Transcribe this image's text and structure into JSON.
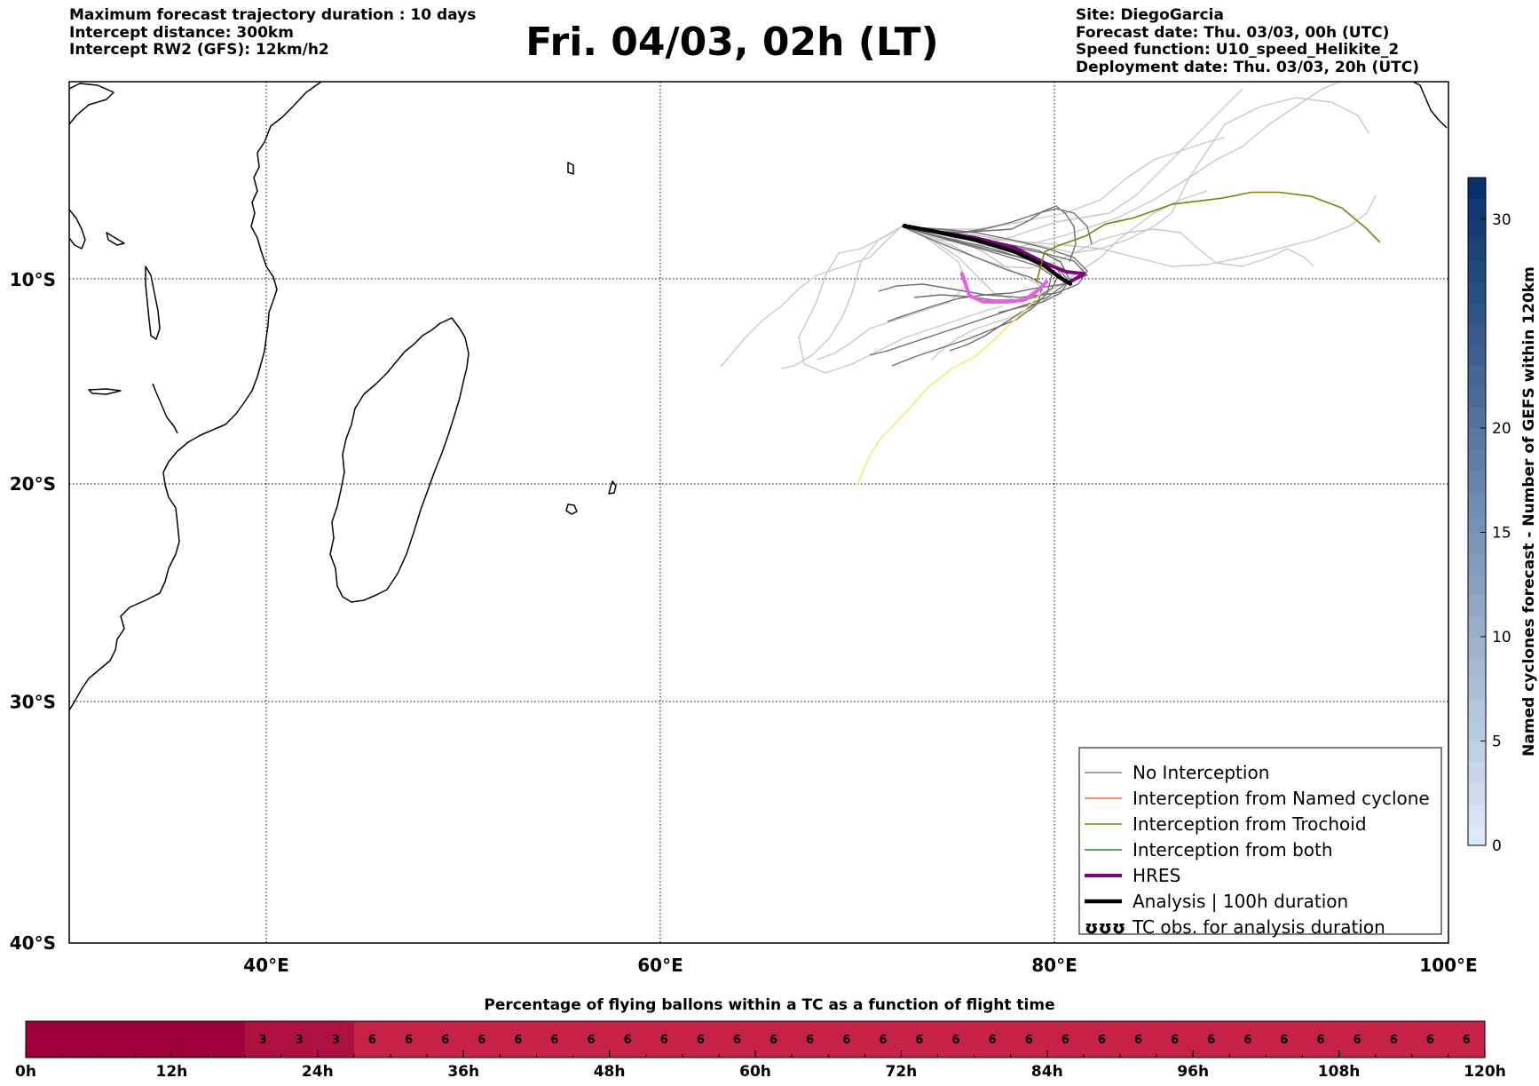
{
  "header": {
    "left_lines": [
      "Maximum forecast trajectory duration : 10 days",
      "Intercept distance: 300km",
      "Intercept RW2 (GFS):  12km/h2"
    ],
    "title": "Fri. 04/03, 02h (LT)",
    "right_lines": [
      "Site: DiegoGarcia",
      "Forecast date: Thu. 03/03, 00h (UTC)",
      "Speed function: U10_speed_Helikite_2",
      "Deployment date: Thu. 03/03, 20h (UTC)"
    ]
  },
  "chart_data": [
    {
      "type": "line",
      "name": "trajectory map",
      "xlim": [
        30,
        100
      ],
      "ylim": [
        -40,
        0
      ],
      "x_ticks": [
        40,
        60,
        80,
        100
      ],
      "x_tick_labels": [
        "40°E",
        "60°E",
        "80°E",
        "100°E"
      ],
      "y_ticks": [
        -10,
        -20,
        -30,
        -40
      ],
      "y_tick_labels": [
        "10°S",
        "20°S",
        "30°S",
        "40°S"
      ],
      "grid": true,
      "legend_position": "lower-right",
      "legend": [
        {
          "label": "No Interception",
          "color": "#808080"
        },
        {
          "label": "Interception from Named cyclone",
          "color": "#ff6a2a"
        },
        {
          "label": "Interception from Trochoid",
          "color": "#808000"
        },
        {
          "label": "Interception from both",
          "color": "#228b22"
        },
        {
          "label": "HRES",
          "color": "#800080"
        },
        {
          "label": "Analysis | 100h duration",
          "color": "#000000"
        },
        {
          "label": "TC obs. for analysis duration",
          "color": "#000000",
          "symbol": "ʊʊʊ"
        }
      ],
      "site": {
        "lon": 72.4,
        "lat": -7.3
      },
      "series": [
        {
          "name": "HRES",
          "color": "#800080",
          "points": [
            [
              72.4,
              -7.3
            ],
            [
              74,
              -7.6
            ],
            [
              76,
              -7.9
            ],
            [
              78,
              -8.4
            ],
            [
              79.6,
              -9.2
            ],
            [
              80.6,
              -9.6
            ],
            [
              81.5,
              -9.7
            ],
            [
              80.8,
              -10.1
            ]
          ]
        },
        {
          "name": "HRES",
          "color": "#e75de9",
          "points": [
            [
              75.3,
              -9.7
            ],
            [
              75.7,
              -10.8
            ],
            [
              76.4,
              -11.1
            ],
            [
              77.6,
              -11.1
            ],
            [
              78.5,
              -11
            ],
            [
              79.2,
              -10.5
            ],
            [
              79.6,
              -10.1
            ]
          ]
        },
        {
          "name": "Analysis | 100h duration",
          "color": "#000000",
          "points": [
            [
              72.4,
              -7.3
            ],
            [
              74,
              -7.6
            ],
            [
              76,
              -8
            ],
            [
              78,
              -8.6
            ],
            [
              79.5,
              -9.3
            ],
            [
              80.3,
              -9.9
            ],
            [
              80.8,
              -10.2
            ]
          ]
        },
        {
          "name": "Interception from Trochoid",
          "color": "#808000",
          "points": [
            [
              79.1,
              -10.1
            ],
            [
              79.5,
              -8.6
            ],
            [
              80.2,
              -8.3
            ],
            [
              81.6,
              -7.8
            ],
            [
              82.6,
              -7.2
            ],
            [
              84,
              -6.9
            ],
            [
              86,
              -6.2
            ],
            [
              88.5,
              -5.9
            ],
            [
              90,
              -5.6
            ],
            [
              91.4,
              -5.6
            ],
            [
              93,
              -5.8
            ],
            [
              94.6,
              -6.4
            ],
            [
              95.8,
              -7.4
            ],
            [
              96.5,
              -8.1
            ]
          ]
        },
        {
          "name": "yellow",
          "color": "#f0ea55",
          "points": [
            [
              79.3,
              -10.7
            ],
            [
              78.3,
              -11.7
            ],
            [
              76.8,
              -13.1
            ],
            [
              76,
              -13.8
            ],
            [
              74.8,
              -14.4
            ],
            [
              73.5,
              -15.4
            ],
            [
              72.7,
              -16.3
            ],
            [
              71.9,
              -17.1
            ],
            [
              71.2,
              -17.8
            ],
            [
              70.7,
              -18.5
            ],
            [
              70.2,
              -19.6
            ],
            [
              70,
              -20
            ]
          ]
        }
      ]
    },
    {
      "type": "heatmap",
      "title": "",
      "ylabel": "Named cyclones forecast - Number of GEFS within 120km",
      "range": [
        0,
        32
      ],
      "ticks": [
        0,
        5,
        10,
        15,
        20,
        30
      ],
      "colors": [
        "#dbe9f6",
        "#08306b"
      ]
    },
    {
      "type": "table",
      "title": "Percentage of flying ballons within a TC as a function of flight time",
      "x_ticks": [
        "0h",
        "12h",
        "24h",
        "36h",
        "48h",
        "60h",
        "72h",
        "84h",
        "96h",
        "108h",
        "120h"
      ],
      "range_hours": [
        0,
        120
      ],
      "step_hours": 3,
      "values": [
        0,
        0,
        0,
        0,
        0,
        0,
        3,
        3,
        3,
        6,
        6,
        6,
        6,
        6,
        6,
        6,
        6,
        6,
        6,
        6,
        6,
        6,
        6,
        6,
        6,
        6,
        6,
        6,
        6,
        6,
        6,
        6,
        6,
        6,
        6,
        6,
        6,
        6,
        6,
        6
      ]
    }
  ]
}
